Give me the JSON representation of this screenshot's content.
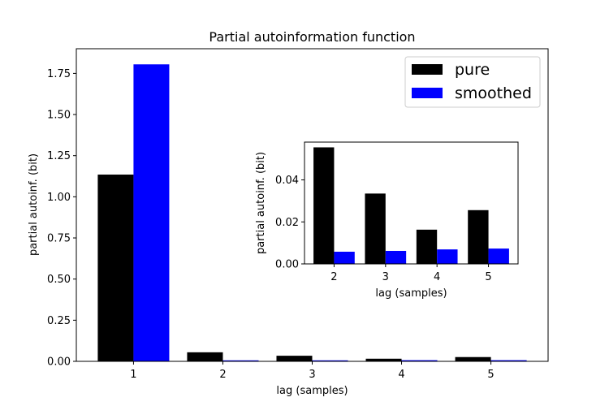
{
  "chart_data": [
    {
      "type": "bar",
      "title": "Partial autoinformation function",
      "xlabel": "lag (samples)",
      "ylabel": "partial autoinf. (bit)",
      "categories": [
        "1",
        "2",
        "3",
        "4",
        "5"
      ],
      "ylim": [
        0,
        1.9
      ],
      "yticks": [
        "0.00",
        "0.25",
        "0.50",
        "0.75",
        "1.00",
        "1.25",
        "1.50",
        "1.75"
      ],
      "grid": false,
      "legend": {
        "placement": "top-right",
        "entries": [
          "pure",
          "smoothed"
        ]
      },
      "series": [
        {
          "name": "pure",
          "color": "#000000",
          "values": [
            1.135,
            0.055,
            0.034,
            0.016,
            0.026
          ]
        },
        {
          "name": "smoothed",
          "color": "#0000ff",
          "values": [
            1.805,
            0.006,
            0.006,
            0.007,
            0.007
          ]
        }
      ]
    },
    {
      "type": "bar",
      "title": "",
      "xlabel": "lag (samples)",
      "ylabel": "partial autoinf. (bit)",
      "categories": [
        "2",
        "3",
        "4",
        "5"
      ],
      "ylim": [
        0,
        0.058
      ],
      "yticks": [
        "0.00",
        "0.02",
        "0.04"
      ],
      "grid": false,
      "series": [
        {
          "name": "pure",
          "color": "#000000",
          "values": [
            0.0555,
            0.0335,
            0.0163,
            0.0256
          ]
        },
        {
          "name": "smoothed",
          "color": "#0000ff",
          "values": [
            0.0058,
            0.0062,
            0.0069,
            0.0073
          ]
        }
      ]
    }
  ]
}
